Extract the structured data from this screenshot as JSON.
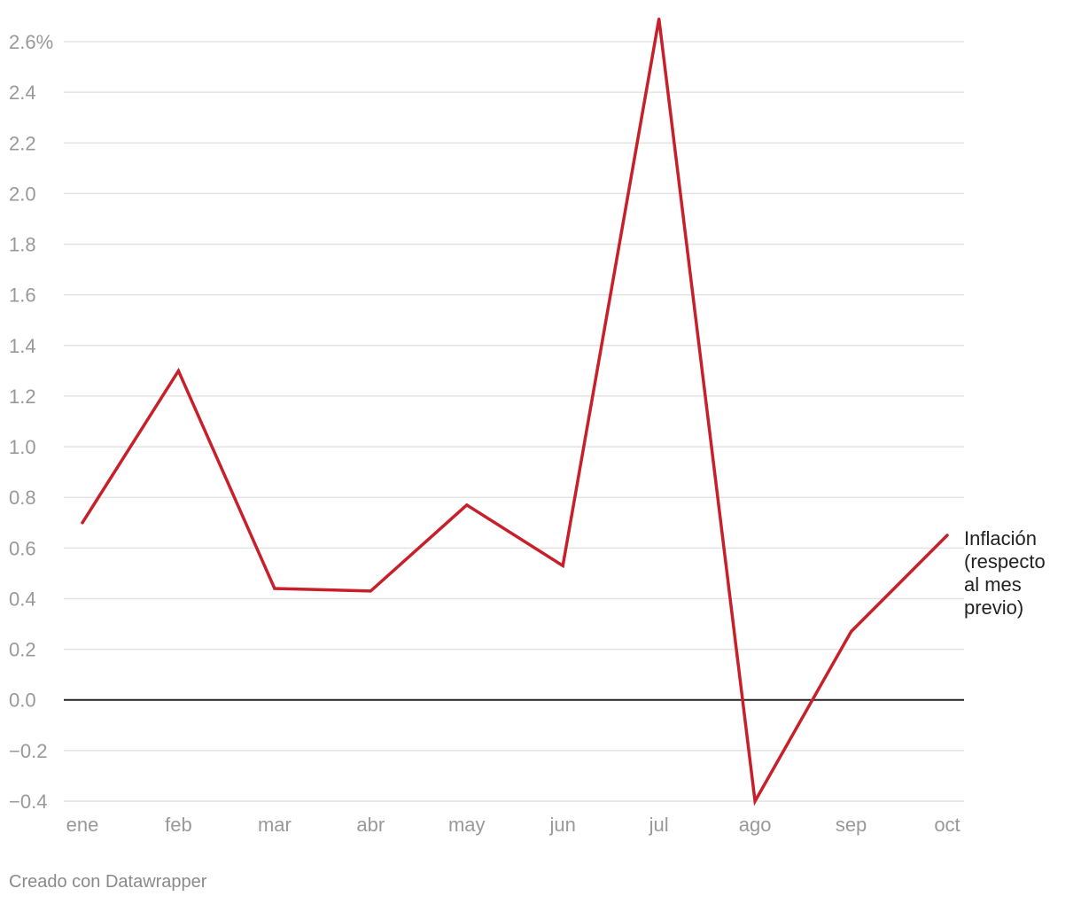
{
  "chart_data": {
    "type": "line",
    "categories": [
      "ene",
      "feb",
      "mar",
      "abr",
      "may",
      "jun",
      "jul",
      "ago",
      "sep",
      "oct"
    ],
    "series": [
      {
        "name": "Inflación (respecto al mes previo)",
        "label_lines": [
          "Inflación",
          "(respecto",
          "al mes",
          "previo)"
        ],
        "values": [
          0.7,
          1.3,
          0.44,
          0.43,
          0.77,
          0.53,
          2.69,
          -0.4,
          0.27,
          0.65
        ],
        "color": "#c8202a"
      }
    ],
    "y_ticks": [
      {
        "value": 2.6,
        "label": "2.6%"
      },
      {
        "value": 2.4,
        "label": "2.4"
      },
      {
        "value": 2.2,
        "label": "2.2"
      },
      {
        "value": 2.0,
        "label": "2.0"
      },
      {
        "value": 1.8,
        "label": "1.8"
      },
      {
        "value": 1.6,
        "label": "1.6"
      },
      {
        "value": 1.4,
        "label": "1.4"
      },
      {
        "value": 1.2,
        "label": "1.2"
      },
      {
        "value": 1.0,
        "label": "1.0"
      },
      {
        "value": 0.8,
        "label": "0.8"
      },
      {
        "value": 0.6,
        "label": "0.6"
      },
      {
        "value": 0.4,
        "label": "0.4"
      },
      {
        "value": 0.2,
        "label": "0.2"
      },
      {
        "value": 0.0,
        "label": "0.0"
      },
      {
        "value": -0.2,
        "label": "−0.2"
      },
      {
        "value": -0.4,
        "label": "−0.4"
      }
    ],
    "ylim": [
      -0.4,
      2.6
    ],
    "grid": true,
    "grid_color": "#e3e3e3",
    "zero_line_color": "#222222",
    "title": "",
    "xlabel": "",
    "ylabel": ""
  },
  "footer": {
    "credit": "Creado con Datawrapper"
  }
}
